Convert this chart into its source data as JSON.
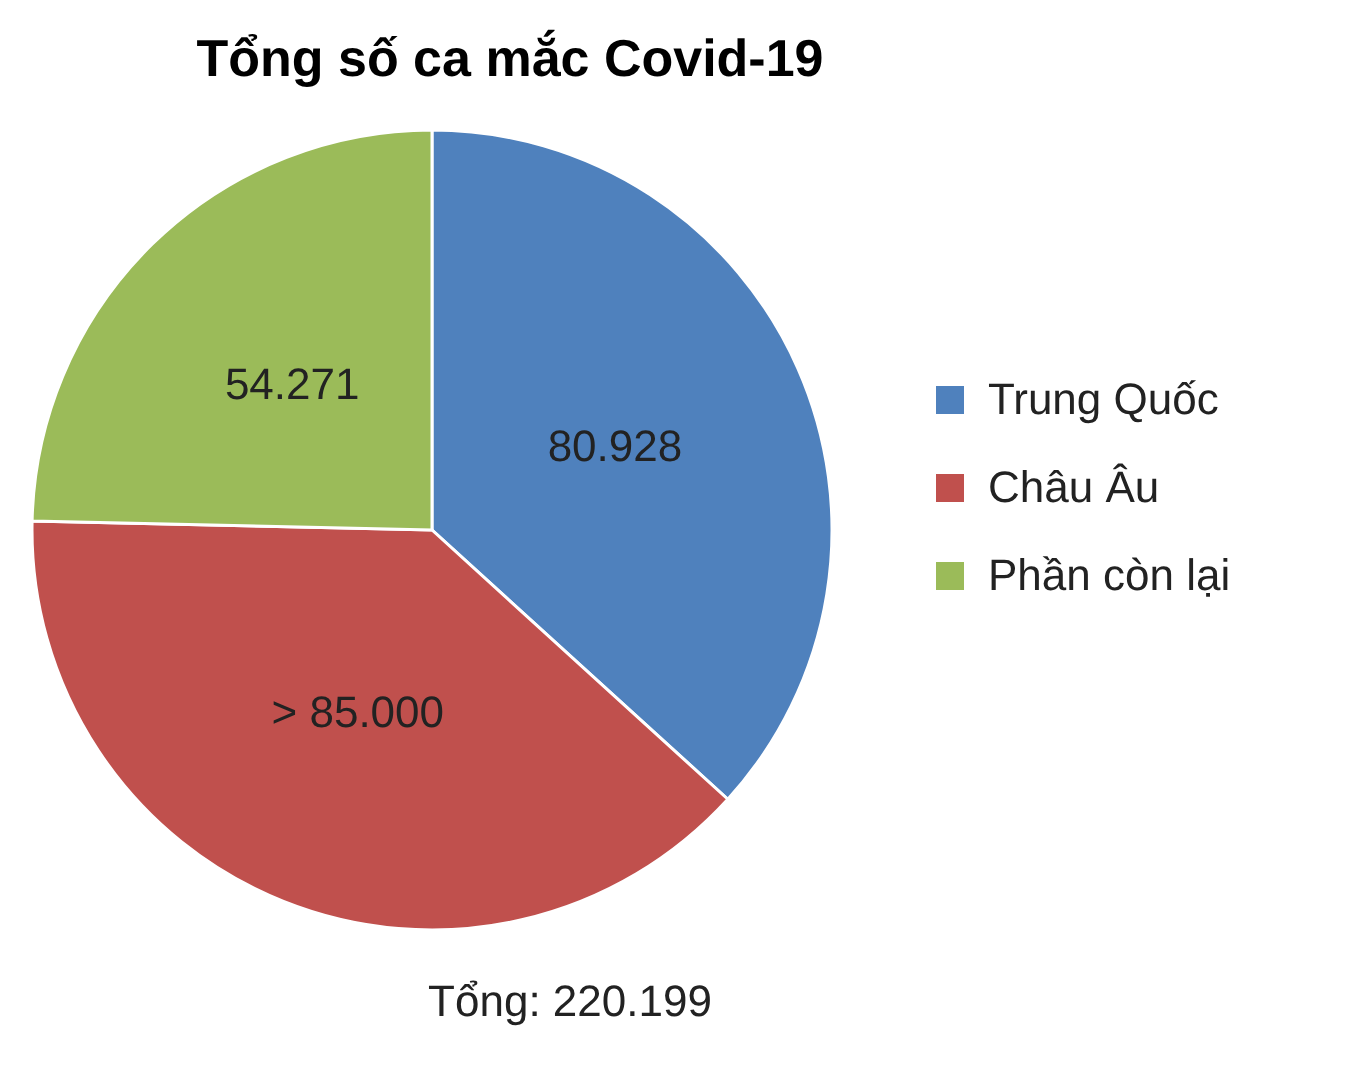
{
  "chart_data": {
    "type": "pie",
    "title": "Tổng số ca mắc Covid-19",
    "categories": [
      "Trung Quốc",
      "Châu Âu",
      "Phần còn lại"
    ],
    "values": [
      80928,
      85000,
      54271
    ],
    "value_labels": [
      "80.928",
      "> 85.000",
      "54.271"
    ],
    "colors": [
      "#4f81bd",
      "#c0504d",
      "#9bbb59"
    ],
    "legend": "right",
    "annotations": [
      "Tổng: 220.199"
    ]
  }
}
